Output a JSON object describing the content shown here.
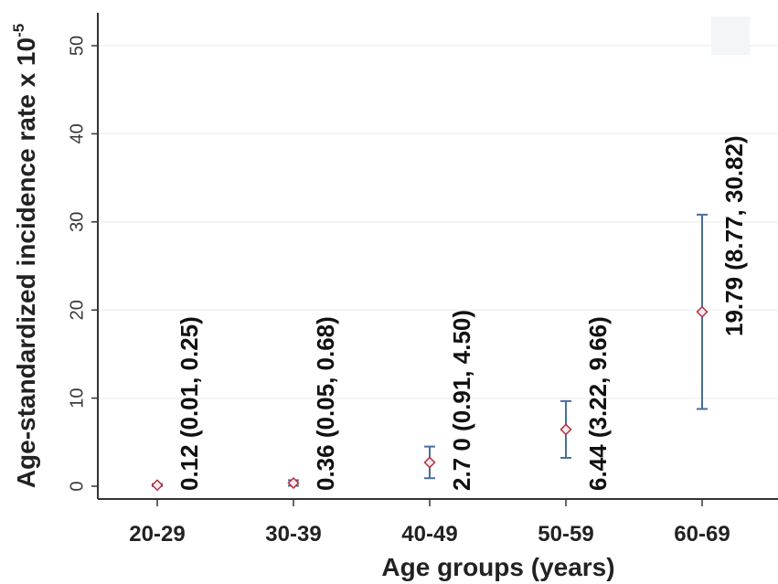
{
  "chart_data": {
    "type": "scatter",
    "title": "",
    "xlabel": "Age groups (years)",
    "ylabel": "Age-standardized incidence rate x 10",
    "ylabel_superscript": "-5",
    "ylim": [
      0,
      50
    ],
    "yticks": [
      "0",
      "10",
      "20",
      "30",
      "40",
      "50"
    ],
    "grid": true,
    "categories": [
      "20-29",
      "30-39",
      "40-49",
      "50-59",
      "60-69"
    ],
    "points": [
      {
        "category": "20-29",
        "value": 0.12,
        "lower": 0.01,
        "upper": 0.25,
        "label": "0.12 (0.01, 0.25)"
      },
      {
        "category": "30-39",
        "value": 0.36,
        "lower": 0.05,
        "upper": 0.68,
        "label": "0.36 (0.05, 0.68)"
      },
      {
        "category": "40-49",
        "value": 2.7,
        "lower": 0.91,
        "upper": 4.5,
        "label": "2.7 0 (0.91, 4.50)"
      },
      {
        "category": "50-59",
        "value": 6.44,
        "lower": 3.22,
        "upper": 9.66,
        "label": "6.44 (3.22, 9.66)"
      },
      {
        "category": "60-69",
        "value": 19.79,
        "lower": 8.77,
        "upper": 30.82,
        "label": "19.79 (8.77, 30.82)"
      }
    ],
    "colors": {
      "background": "#ffffff",
      "plot_background": "#ffffff",
      "grid": "#eef2f5",
      "axis": "#333333",
      "error_bar": "#4a6d9a",
      "marker": "#b03040"
    }
  }
}
